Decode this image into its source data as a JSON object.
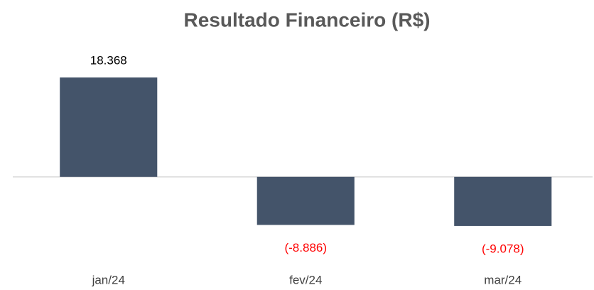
{
  "chart_data": {
    "type": "bar",
    "title": "Resultado Financeiro (R$)",
    "categories": [
      "jan/24",
      "fev/24",
      "mar/24"
    ],
    "values": [
      18368,
      -8886,
      -9078
    ],
    "value_labels": [
      "18.368",
      "(-8.886)",
      "(-9.078)"
    ],
    "color": "#44546a",
    "label_color": "#000000",
    "negative_label_color": "#ff0000",
    "ylim": [
      -15000,
      25000
    ]
  }
}
